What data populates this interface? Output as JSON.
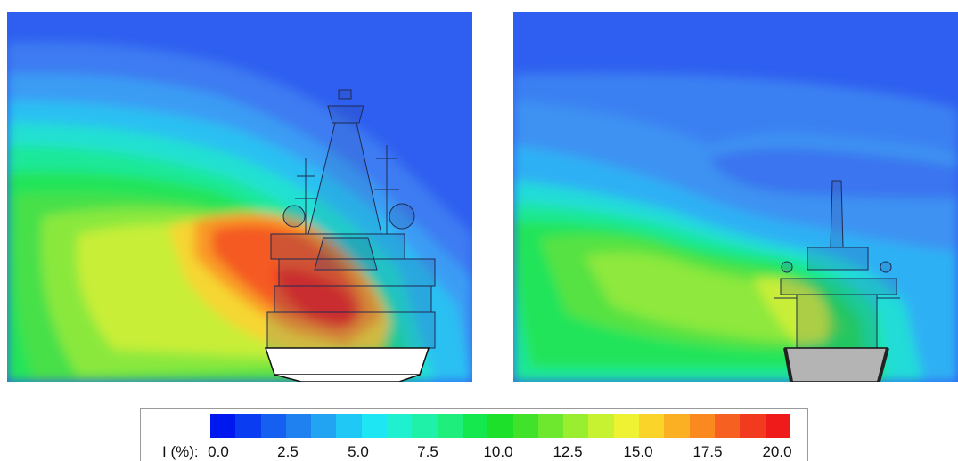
{
  "legend": {
    "title": "I (%):",
    "ticks": [
      "0.0",
      "2.5",
      "5.0",
      "7.5",
      "10.0",
      "12.5",
      "15.0",
      "17.5",
      "20.0"
    ],
    "range": [
      0.0,
      20.0
    ],
    "colors": [
      "#0018f0",
      "#0a3cf2",
      "#1560f0",
      "#1f80ef",
      "#22a4f3",
      "#1fc8f5",
      "#1ee6f2",
      "#1ff0d0",
      "#1ff2a8",
      "#1eee7c",
      "#14e84e",
      "#1ce02a",
      "#41e22a",
      "#6de82e",
      "#9aee30",
      "#c6f232",
      "#eef232",
      "#fbd42a",
      "#fbb024",
      "#fa8a20",
      "#f66020",
      "#f23a1e",
      "#ef1a1a"
    ]
  },
  "panels": [
    {
      "name": "left",
      "hull_color": "#ffffff"
    },
    {
      "name": "right",
      "hull_color": "#b4b4b4"
    }
  ]
}
